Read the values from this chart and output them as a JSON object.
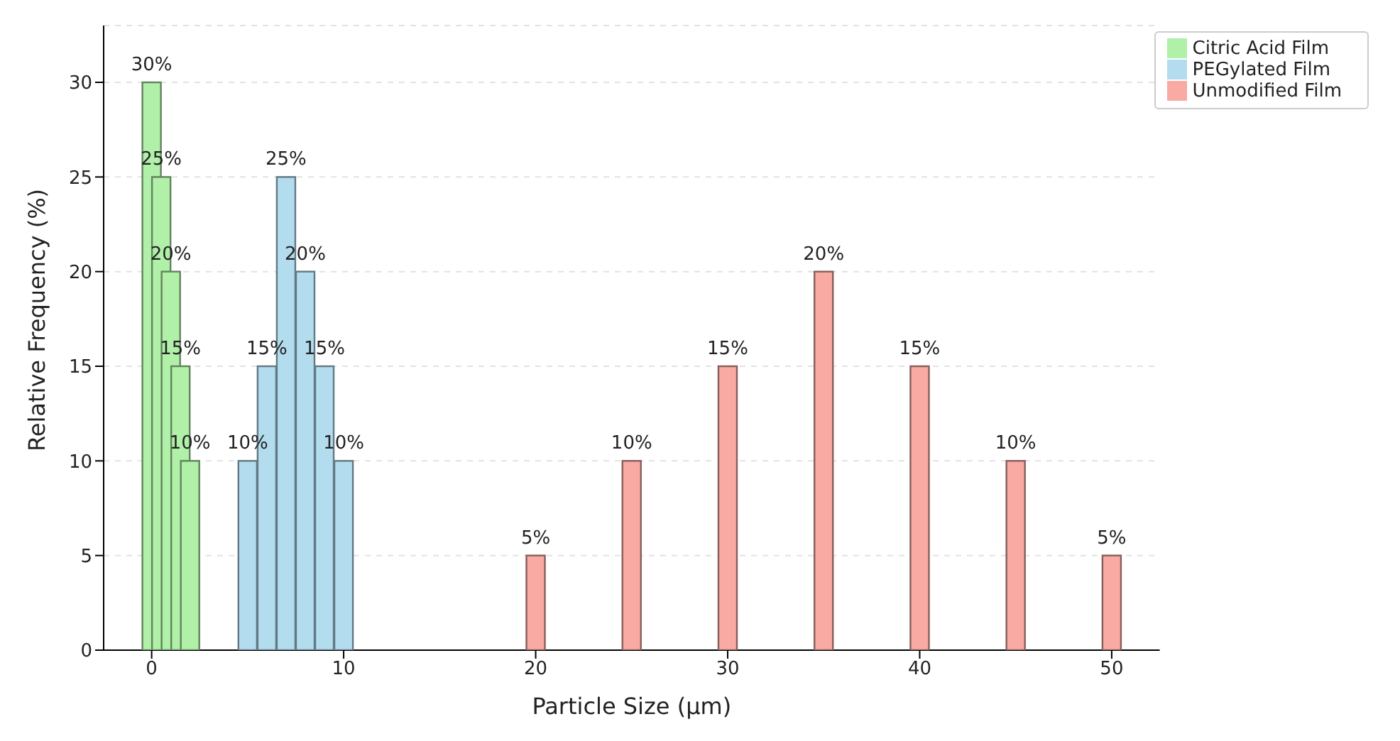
{
  "chart_data": {
    "type": "bar",
    "xlabel": "Particle Size (μm)",
    "ylabel": "Relative Frequency (%)",
    "xlim": [
      -2.5,
      52.5
    ],
    "xticks": [
      0,
      10,
      20,
      30,
      40,
      50
    ],
    "ylim": [
      0,
      33
    ],
    "yticks": [
      0,
      5,
      10,
      15,
      20,
      25,
      30
    ],
    "grid": "y",
    "legend": "top right",
    "series": [
      {
        "name": "PEGylated Film",
        "color": "#b3dcef",
        "x": [
          5,
          6,
          7,
          8,
          9,
          10
        ],
        "values": [
          10,
          15,
          25,
          20,
          15,
          10
        ],
        "value_labels": [
          "10%",
          "15%",
          "25%",
          "20%",
          "15%",
          "10%"
        ]
      },
      {
        "name": "Citric Acid Film",
        "color": "#b0f0a8",
        "x": [
          0,
          0.5,
          1,
          1.5,
          2
        ],
        "values": [
          30,
          25,
          20,
          15,
          10
        ],
        "value_labels": [
          "30%",
          "25%",
          "20%",
          "15%",
          "10%"
        ]
      },
      {
        "name": "Unmodified Film",
        "color": "#f8aaa3",
        "x": [
          20,
          25,
          30,
          35,
          40,
          45,
          50
        ],
        "values": [
          5,
          10,
          15,
          20,
          15,
          10,
          5
        ],
        "value_labels": [
          "5%",
          "10%",
          "15%",
          "20%",
          "15%",
          "10%",
          "5%"
        ]
      }
    ]
  }
}
